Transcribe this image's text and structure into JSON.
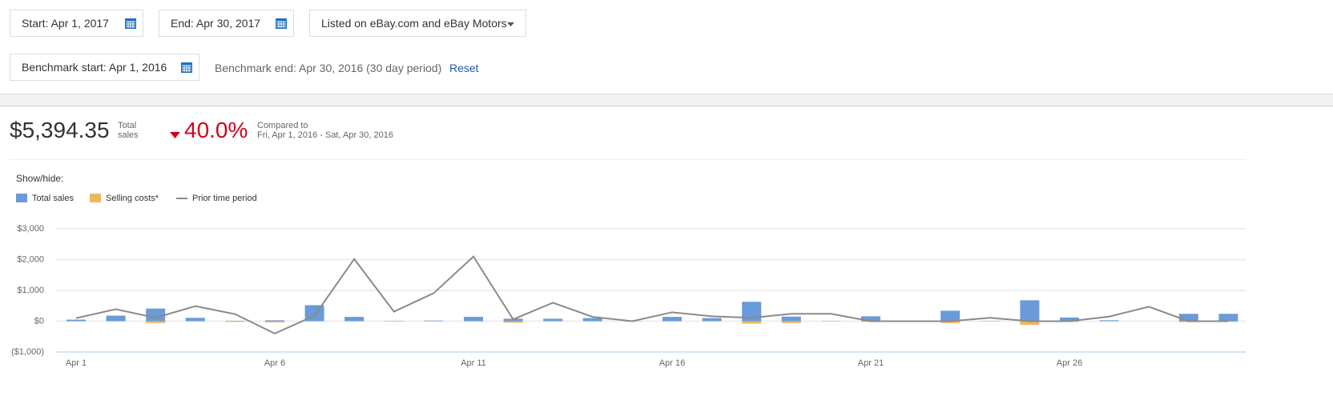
{
  "controls": {
    "start": "Start: Apr 1, 2017",
    "end": "End: Apr 30, 2017",
    "listing": "Listed on eBay.com and eBay Motors",
    "benchmark_start": "Benchmark start: Apr 1, 2016",
    "benchmark_end": "Benchmark end: Apr 30, 2016 (30 day period)",
    "reset": "Reset"
  },
  "summary": {
    "total": "$5,394.35",
    "total_label": "Total sales",
    "change": "40.0%",
    "compared_label": "Compared to",
    "compared_range": "Fri, Apr 1, 2016 - Sat, Apr 30, 2016"
  },
  "show_hide": "Show/hide:",
  "chart_data": {
    "type": "bar",
    "categories": [
      "Apr 1",
      null,
      null,
      null,
      null,
      "Apr 6",
      null,
      null,
      null,
      null,
      "Apr 11",
      null,
      null,
      null,
      null,
      "Apr 16",
      null,
      null,
      null,
      null,
      "Apr 21",
      null,
      null,
      null,
      null,
      "Apr 26",
      null,
      null,
      null,
      null
    ],
    "series": [
      {
        "name": "Total sales",
        "color": "#6a9bd8",
        "values": [
          50,
          180,
          410,
          110,
          10,
          30,
          520,
          140,
          5,
          20,
          140,
          80,
          80,
          100,
          0,
          140,
          100,
          630,
          150,
          10,
          160,
          0,
          340,
          10,
          680,
          120,
          30,
          0,
          240,
          240
        ]
      },
      {
        "name": "Selling costs*",
        "color": "#f0b65c",
        "values": [
          0,
          0,
          -60,
          0,
          -20,
          -40,
          0,
          0,
          -10,
          0,
          0,
          -50,
          0,
          0,
          -10,
          0,
          0,
          -80,
          -60,
          0,
          -20,
          0,
          -60,
          0,
          -120,
          -20,
          0,
          0,
          -30,
          -20
        ]
      },
      {
        "name": "Prior time period",
        "color": "#8a8a8a",
        "type": "line",
        "values": [
          100,
          390,
          110,
          490,
          230,
          -400,
          180,
          2020,
          310,
          910,
          2100,
          60,
          600,
          140,
          0,
          290,
          160,
          110,
          240,
          240,
          0,
          0,
          0,
          110,
          0,
          0,
          150,
          470,
          0,
          0
        ]
      }
    ],
    "ylim": [
      -1000,
      3000
    ],
    "yticks": [
      {
        "value": -1000,
        "label": "($1,000)"
      },
      {
        "value": 0,
        "label": "$0"
      },
      {
        "value": 1000,
        "label": "$1,000"
      },
      {
        "value": 2000,
        "label": "$2,000"
      },
      {
        "value": 3000,
        "label": "$3,000"
      }
    ],
    "grid": true
  }
}
